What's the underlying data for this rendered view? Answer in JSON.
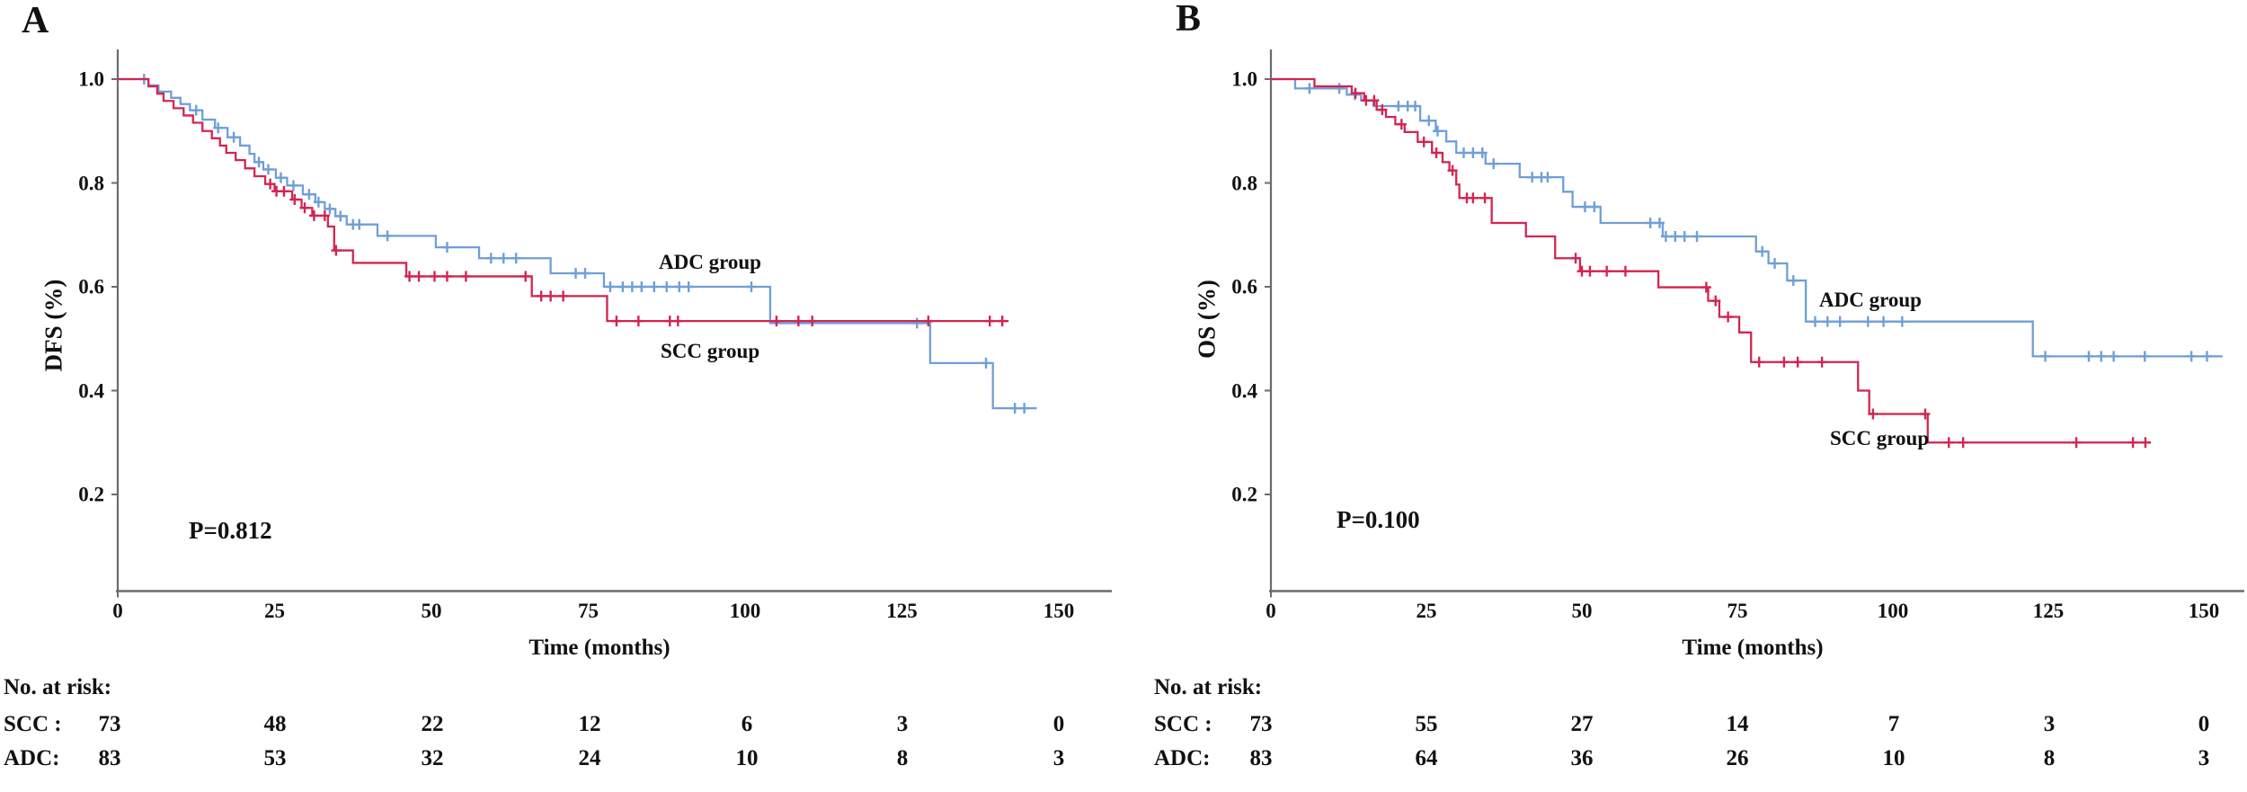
{
  "panels": [
    {
      "panel_letter": "A",
      "y_axis_label": "DFS (%)",
      "x_axis_label": "Time (months)",
      "p_value": "P=0.812",
      "adc_label": "ADC group",
      "scc_label": "SCC group",
      "risk_table": {
        "header": "No. at risk:",
        "rows": [
          {
            "label": "SCC :",
            "values": [
              "73",
              "48",
              "22",
              "12",
              "6",
              "3",
              "0"
            ]
          },
          {
            "label": "ADC:",
            "values": [
              "83",
              "53",
              "32",
              "24",
              "10",
              "8",
              "3"
            ]
          }
        ]
      },
      "chart_data": {
        "type": "line",
        "subtype": "kaplan_meier_step",
        "title": "",
        "xlabel": "Time (months)",
        "ylabel": "DFS (%)",
        "xlim": [
          0,
          158
        ],
        "ylim": [
          0,
          1.04
        ],
        "x_ticks": [
          0,
          25,
          50,
          75,
          100,
          125,
          150
        ],
        "y_ticks": [
          1.0,
          0.8,
          0.6,
          0.4,
          0.2
        ],
        "grid": false,
        "legend_position": "inline-labels",
        "annotation": "P=0.812",
        "series": [
          {
            "name": "ADC group",
            "color": "#6f9fd8",
            "steps": [
              [
                0,
                1
              ],
              [
                4.9,
                0.988
              ],
              [
                6.5,
                0.976
              ],
              [
                8.5,
                0.964
              ],
              [
                10,
                0.952
              ],
              [
                11.5,
                0.94
              ],
              [
                13.5,
                0.922
              ],
              [
                15.5,
                0.906
              ],
              [
                17.5,
                0.888
              ],
              [
                19.5,
                0.872
              ],
              [
                21,
                0.856
              ],
              [
                21.8,
                0.84
              ],
              [
                23.2,
                0.826
              ],
              [
                25.2,
                0.81
              ],
              [
                27,
                0.795
              ],
              [
                29.5,
                0.778
              ],
              [
                31.5,
                0.763
              ],
              [
                33,
                0.75
              ],
              [
                34.7,
                0.736
              ],
              [
                36.5,
                0.72
              ],
              [
                41.4,
                0.698
              ],
              [
                50.7,
                0.676
              ],
              [
                57.6,
                0.655
              ],
              [
                69,
                0.626
              ],
              [
                77.5,
                0.6
              ],
              [
                104,
                0.53
              ],
              [
                129.5,
                0.453
              ],
              [
                139.5,
                0.366
              ]
            ],
            "end_time": 146.5,
            "censors": [
              4.2,
              12.5,
              16,
              18.5,
              22.5,
              24,
              26,
              28,
              30.5,
              32,
              33.8,
              35.5,
              37.5,
              38.5,
              43,
              52.5,
              59.5,
              61.5,
              63.5,
              73,
              74.5,
              78.5,
              80.5,
              82,
              83.5,
              85.5,
              87.5,
              89.5,
              91,
              101,
              127.4,
              138.4,
              143,
              144.5
            ]
          },
          {
            "name": "SCC group",
            "color": "#d22552",
            "steps": [
              [
                0,
                1
              ],
              [
                4.9,
                0.986
              ],
              [
                6.3,
                0.972
              ],
              [
                7.3,
                0.958
              ],
              [
                8.9,
                0.944
              ],
              [
                10.5,
                0.93
              ],
              [
                12,
                0.916
              ],
              [
                13.5,
                0.9
              ],
              [
                15,
                0.886
              ],
              [
                16.3,
                0.872
              ],
              [
                17.3,
                0.858
              ],
              [
                18.8,
                0.844
              ],
              [
                20.3,
                0.828
              ],
              [
                21.8,
                0.813
              ],
              [
                23.5,
                0.798
              ],
              [
                25,
                0.784
              ],
              [
                27.8,
                0.768
              ],
              [
                29.3,
                0.752
              ],
              [
                31,
                0.737
              ],
              [
                33.5,
                0.716
              ],
              [
                34.5,
                0.67
              ],
              [
                37.5,
                0.646
              ],
              [
                46,
                0.62
              ],
              [
                66,
                0.582
              ],
              [
                78,
                0.534
              ]
            ],
            "end_time": 142,
            "censors": [
              24.3,
              25.3,
              26.5,
              28.2,
              29.8,
              31.3,
              33,
              34.8,
              46.5,
              48,
              50.5,
              52.5,
              55.5,
              65,
              67.5,
              69,
              71,
              79.5,
              83,
              88,
              89.3,
              105,
              108.5,
              110.7,
              129.2,
              139,
              141
            ]
          }
        ]
      }
    },
    {
      "panel_letter": "B",
      "y_axis_label": "OS (%)",
      "x_axis_label": "Time (months)",
      "p_value": "P=0.100",
      "adc_label": "ADC group",
      "scc_label": "SCC group",
      "risk_table": {
        "header": "No. at risk:",
        "rows": [
          {
            "label": "SCC :",
            "values": [
              "73",
              "55",
              "27",
              "14",
              "7",
              "3",
              "0"
            ]
          },
          {
            "label": "ADC:",
            "values": [
              "83",
              "64",
              "36",
              "26",
              "10",
              "8",
              "3"
            ]
          }
        ]
      },
      "chart_data": {
        "type": "line",
        "subtype": "kaplan_meier_step",
        "title": "",
        "xlabel": "Time (months)",
        "ylabel": "OS (%)",
        "xlim": [
          0,
          158
        ],
        "ylim": [
          0,
          1.04
        ],
        "x_ticks": [
          0,
          25,
          50,
          75,
          100,
          125,
          150
        ],
        "y_ticks": [
          1.0,
          0.8,
          0.6,
          0.4,
          0.2
        ],
        "grid": false,
        "legend_position": "inline-labels",
        "annotation": "P=0.100",
        "series": [
          {
            "name": "ADC group",
            "color": "#6f9fd8",
            "steps": [
              [
                0,
                1
              ],
              [
                3.9,
                0.982
              ],
              [
                12.2,
                0.97
              ],
              [
                14.5,
                0.959
              ],
              [
                16.5,
                0.948
              ],
              [
                24,
                0.92
              ],
              [
                26.5,
                0.9
              ],
              [
                28.2,
                0.88
              ],
              [
                29.8,
                0.858
              ],
              [
                34.5,
                0.837
              ],
              [
                40,
                0.811
              ],
              [
                47,
                0.783
              ],
              [
                48.5,
                0.754
              ],
              [
                53,
                0.723
              ],
              [
                63,
                0.697
              ],
              [
                78,
                0.668
              ],
              [
                80,
                0.645
              ],
              [
                83,
                0.612
              ],
              [
                86,
                0.533
              ],
              [
                122.5,
                0.466
              ]
            ],
            "end_time": 153,
            "censors": [
              6.2,
              11,
              13.5,
              20.5,
              22,
              23.2,
              25.4,
              26.8,
              31,
              32.5,
              34,
              35.8,
              42,
              43.5,
              44.5,
              50.5,
              52,
              61,
              62.5,
              63.5,
              65,
              66.5,
              68.5,
              79,
              81,
              84,
              87.5,
              89.5,
              91.5,
              96,
              98.5,
              101.5,
              124.5,
              131.5,
              133.5,
              135.5,
              140.5,
              148,
              150.5
            ]
          },
          {
            "name": "SCC group",
            "color": "#d22552",
            "steps": [
              [
                0,
                1
              ],
              [
                7,
                0.986
              ],
              [
                13,
                0.973
              ],
              [
                15,
                0.959
              ],
              [
                17,
                0.941
              ],
              [
                18.5,
                0.927
              ],
              [
                20,
                0.913
              ],
              [
                21.5,
                0.898
              ],
              [
                23.6,
                0.879
              ],
              [
                25.9,
                0.858
              ],
              [
                27.6,
                0.84
              ],
              [
                28.7,
                0.824
              ],
              [
                29.8,
                0.797
              ],
              [
                30.3,
                0.771
              ],
              [
                35.5,
                0.723
              ],
              [
                41,
                0.697
              ],
              [
                45.7,
                0.655
              ],
              [
                49.7,
                0.63
              ],
              [
                62.3,
                0.599
              ],
              [
                70.3,
                0.573
              ],
              [
                72.1,
                0.542
              ],
              [
                75.3,
                0.512
              ],
              [
                77.2,
                0.455
              ],
              [
                94.4,
                0.4
              ],
              [
                96.2,
                0.355
              ],
              [
                105.6,
                0.3
              ]
            ],
            "end_time": 141.5,
            "censors": [
              13.6,
              15.3,
              16.6,
              17.9,
              21,
              24.6,
              26.6,
              29.2,
              31.5,
              32.5,
              34.4,
              49,
              50,
              51.3,
              54,
              57,
              70,
              71.5,
              73.5,
              78.5,
              82.5,
              84.7,
              88.6,
              96.8,
              105.2,
              109,
              111.3,
              129.5,
              138.6,
              140.6
            ]
          }
        ]
      }
    }
  ],
  "style": {
    "axis_color": "#6b6b6b",
    "text_color": "#111111",
    "adc_color": "#6f9fd8",
    "scc_color": "#d22552"
  }
}
